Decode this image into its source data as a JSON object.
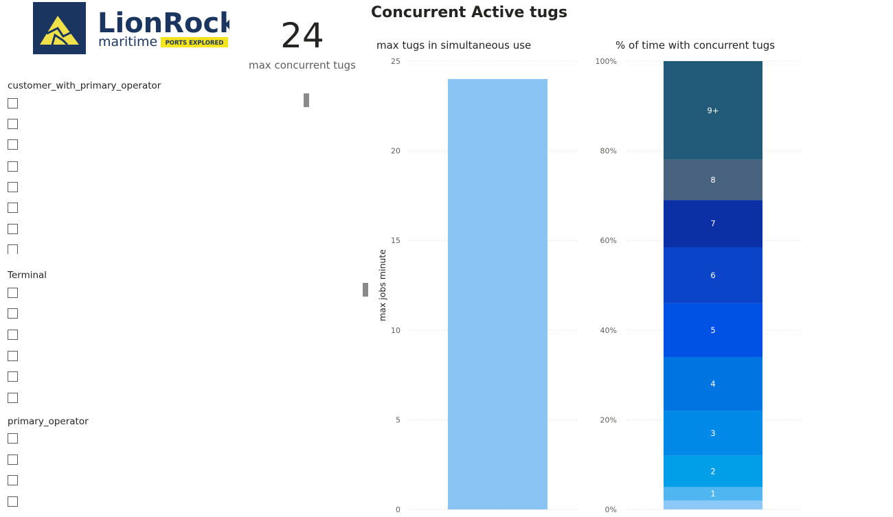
{
  "logo": {
    "brand": "LionRock",
    "sub": "maritime",
    "tagline": "PORTS EXPLORED"
  },
  "kpi": {
    "value": "24",
    "label": "max concurrent tugs"
  },
  "page_title": "Concurrent Active tugs",
  "slicers": [
    {
      "title": "customer_with_primary_operator"
    },
    {
      "title": "Terminal"
    },
    {
      "title": "primary_operator"
    }
  ],
  "chart_data": [
    {
      "type": "bar",
      "title": "max tugs in simultaneous use",
      "xlabel": "",
      "ylabel": "max jobs minute",
      "categories": [
        ""
      ],
      "values": [
        24
      ],
      "ylim": [
        0,
        25
      ],
      "yticks": [
        "0",
        "5",
        "10",
        "15",
        "20",
        "25"
      ],
      "color": "#89c4f4",
      "grid": true
    },
    {
      "type": "bar",
      "title": "% of time with concurrent tugs",
      "stacked": true,
      "ylim": [
        0,
        100
      ],
      "yticks": [
        "0%",
        "20%",
        "40%",
        "60%",
        "80%",
        "100%"
      ],
      "grid": true,
      "segments": [
        {
          "label": "",
          "value": 2,
          "color": "#8cc8f8"
        },
        {
          "label": "1",
          "value": 3,
          "color": "#4fb6f2"
        },
        {
          "label": "2",
          "value": 7,
          "color": "#009fe8"
        },
        {
          "label": "3",
          "value": 10,
          "color": "#0089e6"
        },
        {
          "label": "4",
          "value": 12,
          "color": "#0074e0"
        },
        {
          "label": "5",
          "value": 12,
          "color": "#0052e5"
        },
        {
          "label": "6",
          "value": 12.5,
          "color": "#0a44c8"
        },
        {
          "label": "7",
          "value": 10.5,
          "color": "#0b30a5"
        },
        {
          "label": "8",
          "value": 9,
          "color": "#49627f"
        },
        {
          "label": "9+",
          "value": 22,
          "color": "#225b79"
        }
      ]
    }
  ]
}
